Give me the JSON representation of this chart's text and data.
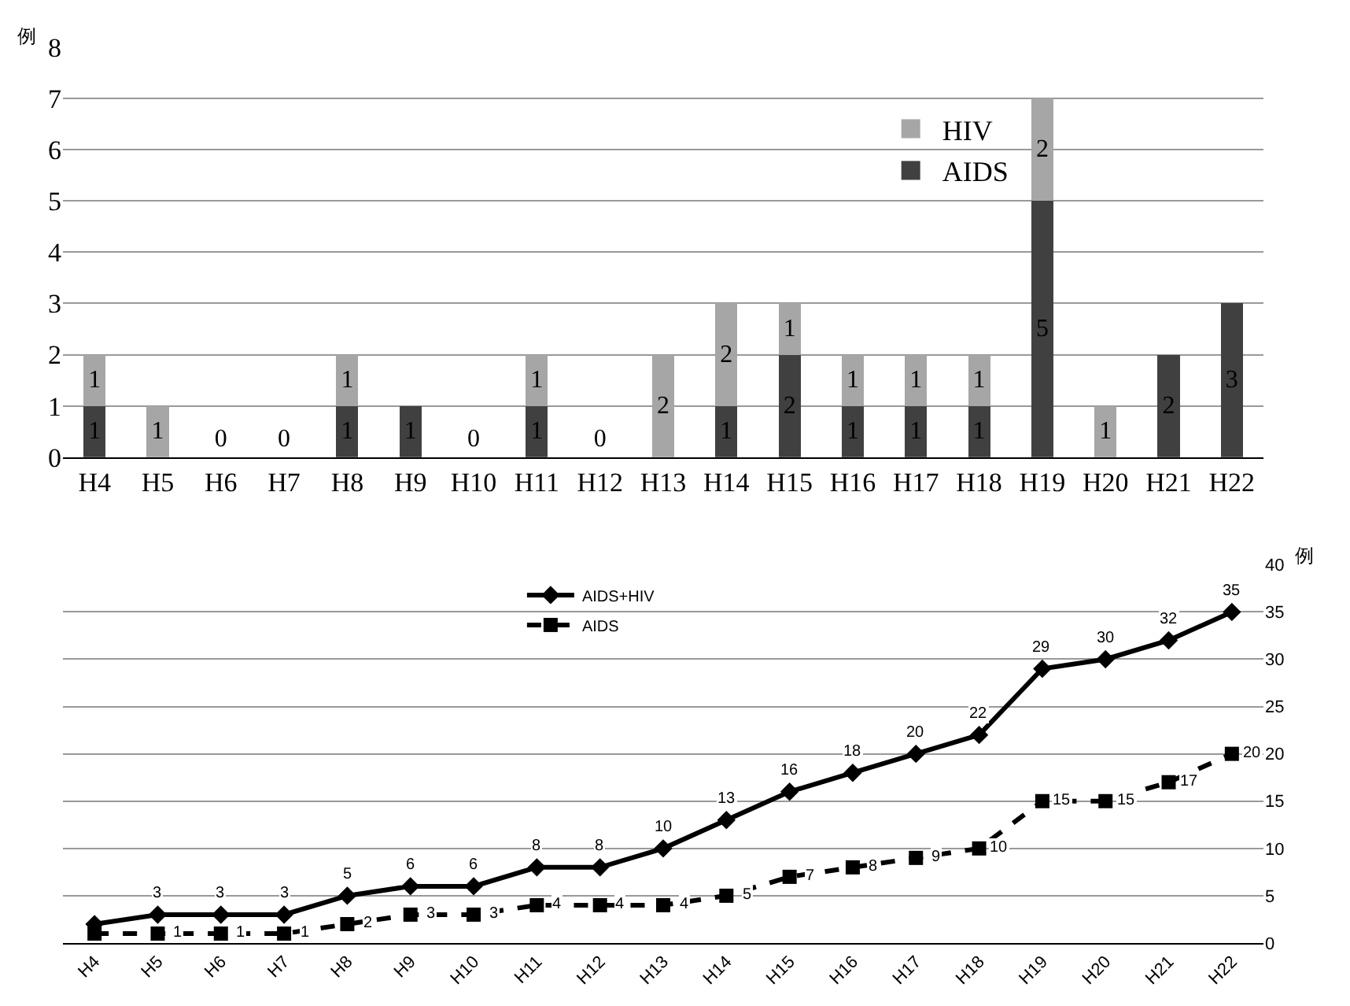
{
  "chart_data": [
    {
      "type": "bar",
      "stacked": true,
      "ylabel": "例",
      "categories": [
        "H4",
        "H5",
        "H6",
        "H7",
        "H8",
        "H9",
        "H10",
        "H11",
        "H12",
        "H13",
        "H14",
        "H15",
        "H16",
        "H17",
        "H18",
        "H19",
        "H20",
        "H21",
        "H22"
      ],
      "series": [
        {
          "name": "AIDS",
          "color": "#404040",
          "values": [
            1,
            0,
            0,
            0,
            1,
            1,
            0,
            1,
            0,
            0,
            1,
            2,
            1,
            1,
            1,
            5,
            0,
            2,
            3
          ],
          "value_labels": [
            "1",
            null,
            "0",
            "0",
            "1",
            "1",
            "0",
            "1",
            "0",
            null,
            "1",
            "2",
            "1",
            "1",
            "1",
            "5",
            null,
            "2",
            "3"
          ]
        },
        {
          "name": "HIV",
          "color": "#a6a6a6",
          "values": [
            1,
            1,
            0,
            0,
            1,
            0,
            0,
            1,
            0,
            2,
            2,
            1,
            1,
            1,
            1,
            2,
            1,
            0,
            0
          ],
          "value_labels": [
            "1",
            "1",
            null,
            null,
            "1",
            null,
            null,
            "1",
            null,
            "2",
            "2",
            "1",
            "1",
            "1",
            "1",
            "2",
            "1",
            null,
            null
          ]
        }
      ],
      "ylim": [
        0,
        8
      ],
      "yticks": [
        0,
        1,
        2,
        3,
        4,
        5,
        6,
        7,
        8
      ],
      "grid": "y",
      "legend": "right"
    },
    {
      "type": "line",
      "ylabel": "例",
      "categories": [
        "H4",
        "H5",
        "H6",
        "H7",
        "H8",
        "H9",
        "H10",
        "H11",
        "H12",
        "H13",
        "H14",
        "H15",
        "H16",
        "H17",
        "H18",
        "H19",
        "H20",
        "H21",
        "H22"
      ],
      "series": [
        {
          "name": "AIDS+HIV",
          "color": "#000000",
          "marker": "diamond",
          "line_style": "solid",
          "values": [
            2,
            3,
            3,
            3,
            5,
            6,
            6,
            8,
            8,
            10,
            13,
            16,
            18,
            20,
            22,
            29,
            30,
            32,
            35
          ],
          "value_labels": [
            null,
            "3",
            "3",
            "3",
            "5",
            "6",
            "6",
            "8",
            "8",
            "10",
            "13",
            "16",
            "18",
            "20",
            "22",
            "29",
            "30",
            "32",
            "35"
          ]
        },
        {
          "name": "AIDS",
          "color": "#000000",
          "marker": "square",
          "line_style": "dashed",
          "values": [
            1,
            1,
            1,
            1,
            2,
            3,
            3,
            4,
            4,
            4,
            5,
            7,
            8,
            9,
            10,
            15,
            15,
            17,
            20
          ],
          "value_labels": [
            null,
            "1",
            "1",
            "1",
            "2",
            "3",
            "3",
            "4",
            "4",
            "4",
            "5",
            "7",
            "8",
            "9",
            "10",
            "15",
            "15",
            "17",
            "20"
          ]
        }
      ],
      "ylim": [
        0,
        40
      ],
      "yticks": [
        0,
        5,
        10,
        15,
        20,
        25,
        30,
        35,
        40
      ],
      "grid": "y",
      "legend": "top"
    }
  ]
}
